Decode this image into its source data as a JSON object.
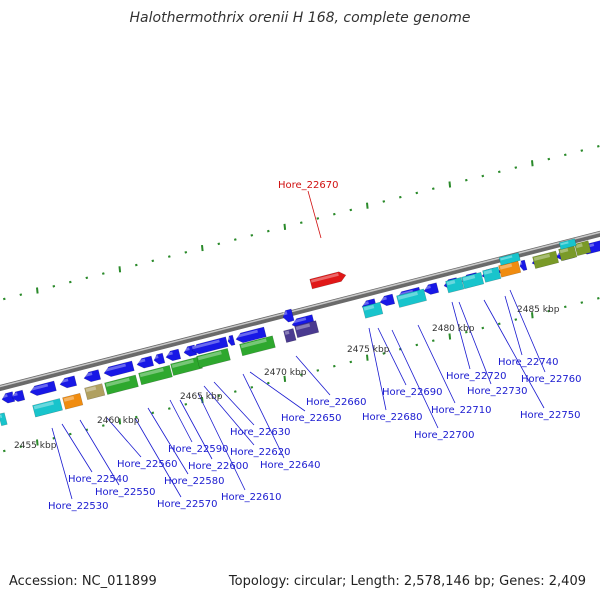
{
  "title": "Halothermothrix orenii H 168, complete genome",
  "footer": {
    "accession": "Accession: NC_011899",
    "stats": "Topology: circular; Length: 2,578,146 bp; Genes: 2,409"
  },
  "colors": {
    "background": "#ffffff",
    "backbone": "#888888",
    "tick": "#2a8a2a",
    "label": "#1a1ad0",
    "highlight_label": "#d01010",
    "highlight_gene": "#e01818",
    "forward_gene": "#1818e6",
    "cyan_gene": "#18c4cc",
    "orange_gene": "#f08c10",
    "khaki_gene": "#b0a060",
    "green_gene": "#2ea82e",
    "olive_gene": "#7a9a28",
    "purple_gene": "#4a3a90"
  },
  "map": {
    "type": "linear genome region",
    "unit": "kbp",
    "scale_labels": [
      "2455 kbp",
      "2460 kbp",
      "2465 kbp",
      "2470 kbp",
      "2475 kbp",
      "2480 kbp",
      "2485 kbp"
    ],
    "highlight": {
      "name": "Hore_22670",
      "track": "forward"
    },
    "gene_labels": [
      "Hore_22530",
      "Hore_22540",
      "Hore_22550",
      "Hore_22560",
      "Hore_22570",
      "Hore_22580",
      "Hore_22590",
      "Hore_22600",
      "Hore_22610",
      "Hore_22620",
      "Hore_22630",
      "Hore_22640",
      "Hore_22650",
      "Hore_22660",
      "Hore_22680",
      "Hore_22690",
      "Hore_22700",
      "Hore_22710",
      "Hore_22720",
      "Hore_22730",
      "Hore_22740",
      "Hore_22750",
      "Hore_22760"
    ]
  }
}
